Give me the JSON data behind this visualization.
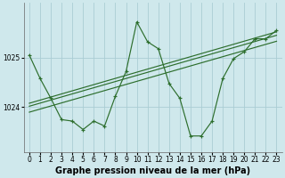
{
  "title": "Graphe pression niveau de la mer (hPa)",
  "bg_color": "#cfe8ec",
  "grid_color": "#aacdd4",
  "line_color": "#2d6e2d",
  "marker_color": "#2d6e2d",
  "x_ticks": [
    0,
    1,
    2,
    3,
    4,
    5,
    6,
    7,
    8,
    9,
    10,
    11,
    12,
    13,
    14,
    15,
    16,
    17,
    18,
    19,
    20,
    21,
    22,
    23
  ],
  "y_ticks": [
    1024,
    1025
  ],
  "xlim": [
    -0.5,
    23.5
  ],
  "ylim": [
    1023.1,
    1026.1
  ],
  "main_series": [
    [
      0,
      1025.05
    ],
    [
      1,
      1024.58
    ],
    [
      2,
      1024.18
    ],
    [
      3,
      1023.75
    ],
    [
      4,
      1023.72
    ],
    [
      5,
      1023.55
    ],
    [
      6,
      1023.72
    ],
    [
      7,
      1023.62
    ],
    [
      8,
      1024.22
    ],
    [
      9,
      1024.72
    ],
    [
      10,
      1025.72
    ],
    [
      11,
      1025.32
    ],
    [
      12,
      1025.18
    ],
    [
      13,
      1024.48
    ],
    [
      14,
      1024.18
    ],
    [
      15,
      1023.42
    ],
    [
      16,
      1023.42
    ],
    [
      17,
      1023.72
    ],
    [
      18,
      1024.58
    ],
    [
      19,
      1024.98
    ],
    [
      20,
      1025.12
    ],
    [
      21,
      1025.38
    ],
    [
      22,
      1025.38
    ],
    [
      23,
      1025.55
    ]
  ],
  "trend_line1": [
    [
      0,
      1024.08
    ],
    [
      23,
      1025.52
    ]
  ],
  "trend_line2": [
    [
      0,
      1024.02
    ],
    [
      23,
      1025.45
    ]
  ],
  "trend_line3": [
    [
      0,
      1023.9
    ],
    [
      23,
      1025.33
    ]
  ],
  "title_fontsize": 7.0,
  "tick_fontsize": 5.5
}
